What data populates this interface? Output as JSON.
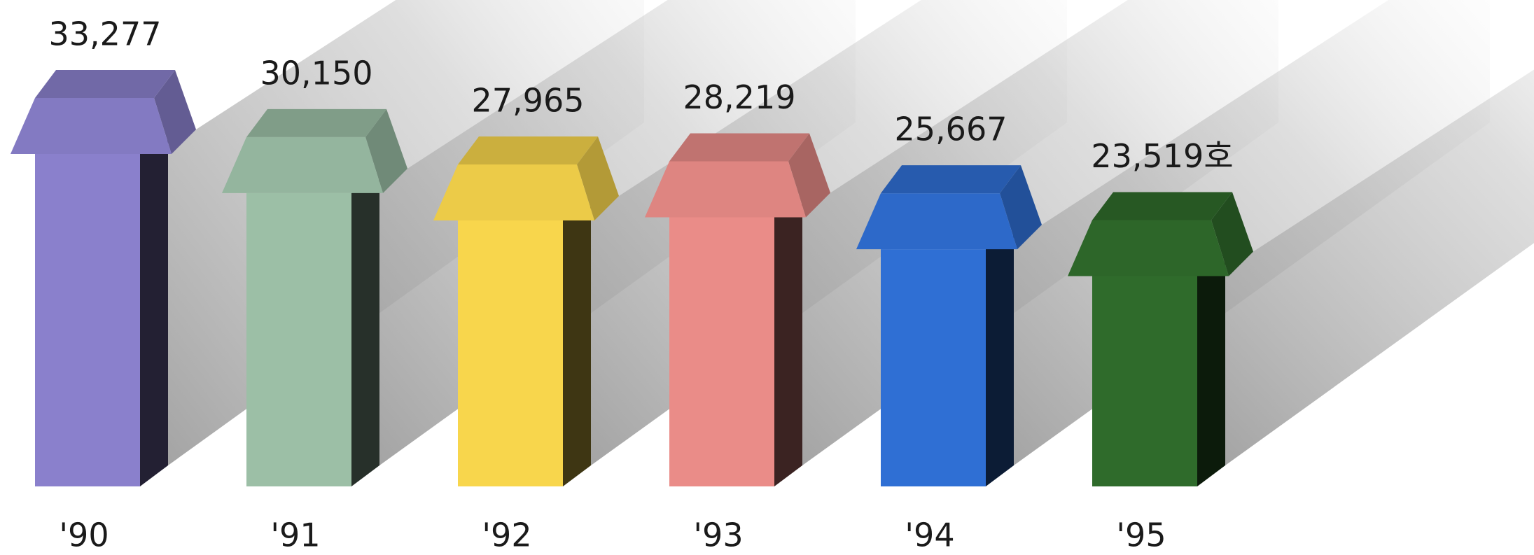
{
  "chart_data": {
    "type": "arrow-bar",
    "categories": [
      "'90",
      "'91",
      "'92",
      "'93",
      "'94",
      "'95"
    ],
    "values": [
      33277,
      30150,
      27965,
      28219,
      25667,
      23519
    ],
    "value_labels": [
      "33,277",
      "30,150",
      "27,965",
      "28,219",
      "25,667",
      "23,519호"
    ],
    "colors": [
      "#8a80cc",
      "#9cbfa6",
      "#f8d64c",
      "#ea8c88",
      "#2f6fd4",
      "#2f6b2b"
    ]
  }
}
